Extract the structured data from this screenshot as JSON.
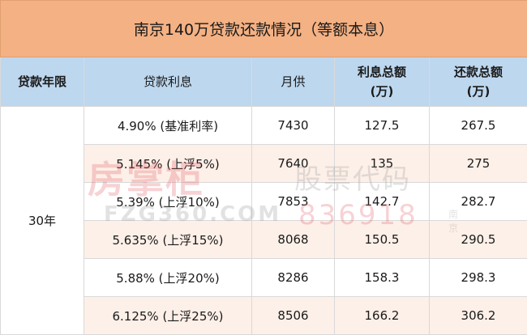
{
  "title": "南京140万贷款还款情况（等额本息）",
  "headers": {
    "term": "贷款年限",
    "rate": "贷款利息",
    "monthly": "月供",
    "interest_total_line1": "利息总额",
    "interest_total_line2": "(万)",
    "repay_total_line1": "还款总额",
    "repay_total_line2": "(万)"
  },
  "term": "30年",
  "rows": [
    {
      "rate": "4.90% (基准利率)",
      "monthly": "7430",
      "interest": "127.5",
      "total": "267.5"
    },
    {
      "rate": "5.145% (上浮5%)",
      "monthly": "7640",
      "interest": "135",
      "total": "275"
    },
    {
      "rate": "5.39% (上浮10%)",
      "monthly": "7853",
      "interest": "142.7",
      "total": "282.7"
    },
    {
      "rate": "5.635% (上浮15%)",
      "monthly": "8068",
      "interest": "150.5",
      "total": "290.5"
    },
    {
      "rate": "5.88% (上浮20%)",
      "monthly": "8286",
      "interest": "158.3",
      "total": "298.3"
    },
    {
      "rate": "6.125% (上浮25%)",
      "monthly": "8506",
      "interest": "166.2",
      "total": "306.2"
    }
  ],
  "watermark": {
    "brand": "房掌柜",
    "stock_label": "股票代码",
    "url": "FZG360.COM",
    "stock_code": "836918",
    "city": "南京"
  }
}
